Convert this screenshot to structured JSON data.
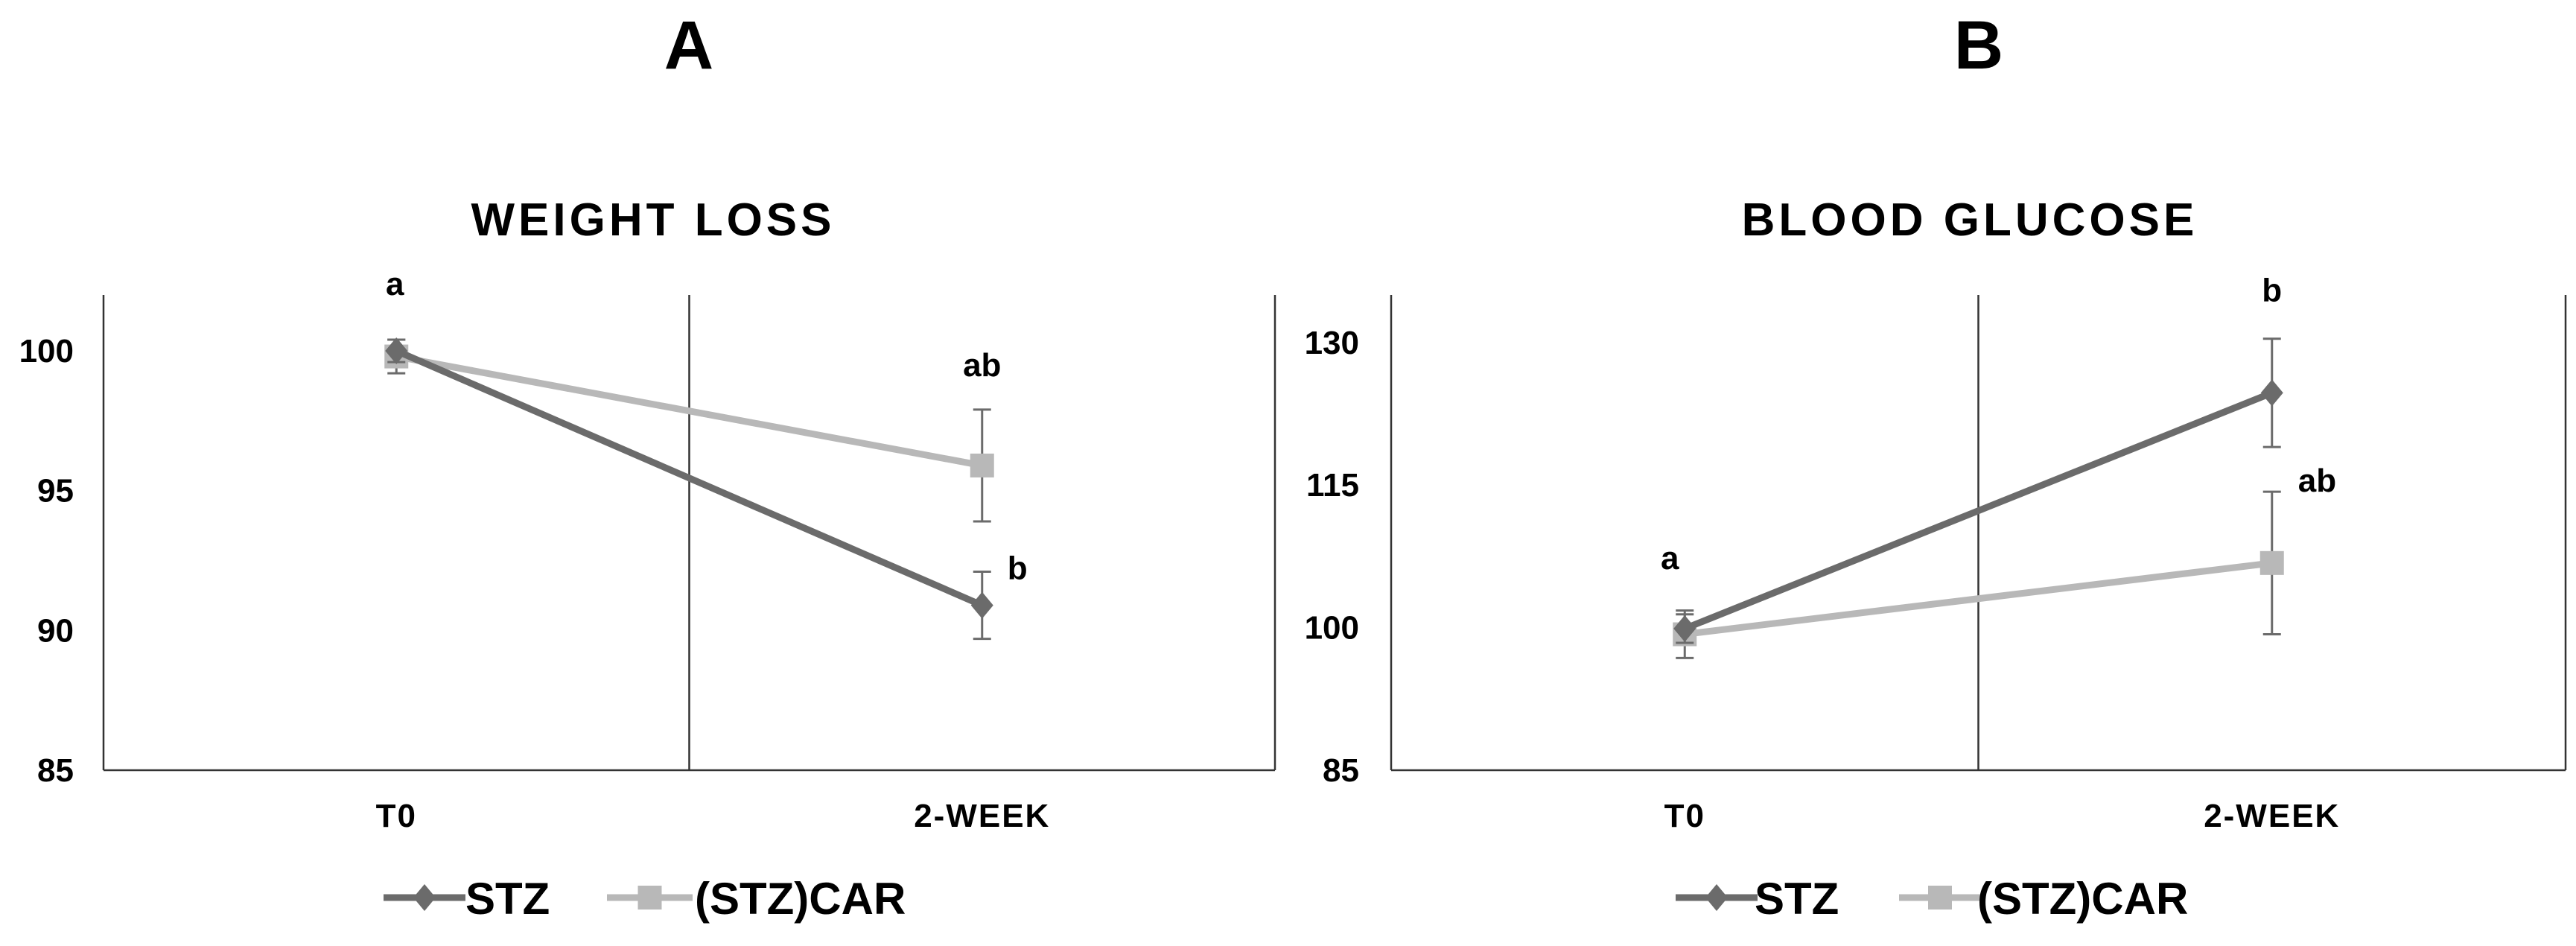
{
  "chart_data": [
    {
      "type": "line",
      "panel": "A",
      "title": "WEIGHT LOSS",
      "categories": [
        "T0",
        "2-WEEK"
      ],
      "ylim": [
        85,
        102
      ],
      "yticks": [
        "85",
        "90",
        "95",
        "100"
      ],
      "grid": false,
      "legend_position": "bottom",
      "series": [
        {
          "name": "STZ",
          "marker": "diamond",
          "color": "#6b6b6b",
          "values": [
            100,
            90.9
          ],
          "errors": [
            0.4,
            1.2
          ],
          "labels": [
            "a",
            "b"
          ]
        },
        {
          "name": "(STZ)CAR",
          "marker": "square",
          "color": "#b8b8b8",
          "values": [
            99.8,
            95.9
          ],
          "errors": [
            0.6,
            2.0
          ],
          "labels": [
            "",
            "ab"
          ]
        }
      ]
    },
    {
      "type": "line",
      "panel": "B",
      "title": "BLOOD GLUCOSE",
      "categories": [
        "T0",
        "2-WEEK"
      ],
      "ylim": [
        85,
        135
      ],
      "yticks": [
        "85",
        "100",
        "115",
        "130"
      ],
      "grid": false,
      "legend_position": "bottom",
      "series": [
        {
          "name": "STZ",
          "marker": "diamond",
          "color": "#6b6b6b",
          "values": [
            99.9,
            124.7
          ],
          "errors": [
            1.5,
            5.7
          ],
          "labels": [
            "a",
            "b"
          ]
        },
        {
          "name": "(STZ)CAR",
          "marker": "square",
          "color": "#b8b8b8",
          "values": [
            99.3,
            106.8
          ],
          "errors": [
            2.5,
            7.5
          ],
          "labels": [
            "",
            "ab"
          ]
        }
      ]
    }
  ]
}
